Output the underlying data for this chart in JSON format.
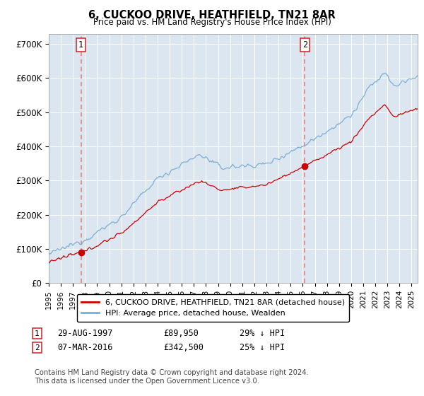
{
  "title": "6, CUCKOO DRIVE, HEATHFIELD, TN21 8AR",
  "subtitle": "Price paid vs. HM Land Registry's House Price Index (HPI)",
  "ylabel_ticks": [
    "£0",
    "£100K",
    "£200K",
    "£300K",
    "£400K",
    "£500K",
    "£600K",
    "£700K"
  ],
  "ytick_values": [
    0,
    100000,
    200000,
    300000,
    400000,
    500000,
    600000,
    700000
  ],
  "ylim": [
    0,
    730000
  ],
  "xlim_start": 1995.0,
  "xlim_end": 2025.5,
  "sale1_date": 1997.66,
  "sale1_price": 89950,
  "sale1_label": "1",
  "sale2_date": 2016.17,
  "sale2_price": 342500,
  "sale2_label": "2",
  "legend_line1": "6, CUCKOO DRIVE, HEATHFIELD, TN21 8AR (detached house)",
  "legend_line2": "HPI: Average price, detached house, Wealden",
  "footer": "Contains HM Land Registry data © Crown copyright and database right 2024.\nThis data is licensed under the Open Government Licence v3.0.",
  "hpi_color": "#7bafd4",
  "price_color": "#cc0000",
  "bg_color": "#dce6f0",
  "grid_color": "#ffffff",
  "dashed_line_color": "#e87878"
}
